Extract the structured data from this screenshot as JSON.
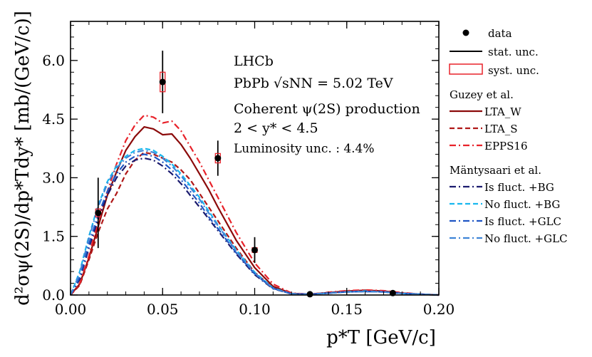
{
  "chart_data": {
    "type": "line",
    "xlabel": "p*T [GeV/c]",
    "ylabel": "d²σψ(2S)/dp*Tdy* [mb/(GeV/c)]",
    "xlim": [
      0.0,
      0.2
    ],
    "ylim": [
      0.0,
      7.0
    ],
    "xticks": [
      0.0,
      0.05,
      0.1,
      0.15,
      0.2
    ],
    "xtick_labels": [
      "0.00",
      "0.05",
      "0.10",
      "0.15",
      "0.20"
    ],
    "yticks": [
      0.0,
      1.5,
      3.0,
      4.5,
      6.0
    ],
    "ytick_labels": [
      "0.0",
      "1.5",
      "3.0",
      "4.5",
      "6.0"
    ],
    "annotations": [
      "LHCb",
      "PbPb √sNN = 5.02 TeV",
      "Coherent ψ(2S) production",
      "2 < y* < 4.5",
      "Luminosity unc. : 4.4%"
    ],
    "data_points": {
      "name": "data",
      "x": [
        0.015,
        0.05,
        0.08,
        0.1,
        0.13,
        0.175
      ],
      "y": [
        2.1,
        5.45,
        3.5,
        1.15,
        0.02,
        0.05
      ],
      "stat_err": [
        0.9,
        0.8,
        0.45,
        0.33,
        0.03,
        0.04
      ],
      "syst_err": [
        0.1,
        0.25,
        0.12,
        0.06,
        0.005,
        0.005
      ]
    },
    "legend": {
      "data_label": "data",
      "stat_label": "stat. unc.",
      "syst_label": "syst. unc.",
      "group1_title": "Guzey et al.",
      "group2_title": "Mäntysaari et al."
    },
    "series": [
      {
        "name": "LTA_W",
        "group": "Guzey et al.",
        "color": "#8b0a0a",
        "style": "solid",
        "x": [
          0,
          0.005,
          0.01,
          0.015,
          0.02,
          0.025,
          0.03,
          0.035,
          0.04,
          0.045,
          0.05,
          0.055,
          0.06,
          0.065,
          0.07,
          0.075,
          0.08,
          0.09,
          0.1,
          0.11,
          0.12,
          0.13,
          0.14,
          0.15,
          0.16,
          0.17,
          0.18,
          0.19,
          0.2
        ],
        "y": [
          0.0,
          0.28,
          0.95,
          1.75,
          2.55,
          3.15,
          3.7,
          4.05,
          4.3,
          4.25,
          4.1,
          4.12,
          3.85,
          3.5,
          3.1,
          2.7,
          2.25,
          1.4,
          0.7,
          0.22,
          0.04,
          0.02,
          0.06,
          0.1,
          0.12,
          0.1,
          0.05,
          0.02,
          0.0
        ]
      },
      {
        "name": "LTA_S",
        "group": "Guzey et al.",
        "color": "#b01818",
        "style": "dashed",
        "x": [
          0,
          0.005,
          0.01,
          0.015,
          0.02,
          0.025,
          0.03,
          0.035,
          0.04,
          0.045,
          0.05,
          0.055,
          0.06,
          0.065,
          0.07,
          0.075,
          0.08,
          0.09,
          0.1,
          0.11,
          0.12,
          0.13,
          0.14,
          0.15,
          0.16,
          0.17,
          0.18,
          0.19,
          0.2
        ],
        "y": [
          0.0,
          0.25,
          0.9,
          1.6,
          2.2,
          2.6,
          3.1,
          3.45,
          3.65,
          3.6,
          3.5,
          3.4,
          3.2,
          2.95,
          2.6,
          2.25,
          1.9,
          1.2,
          0.58,
          0.18,
          0.03,
          0.02,
          0.05,
          0.09,
          0.1,
          0.09,
          0.04,
          0.02,
          0.0
        ]
      },
      {
        "name": "EPPS16",
        "group": "Guzey et al.",
        "color": "#e8222a",
        "style": "dashdot",
        "x": [
          0,
          0.005,
          0.01,
          0.015,
          0.02,
          0.025,
          0.03,
          0.035,
          0.04,
          0.045,
          0.05,
          0.055,
          0.06,
          0.065,
          0.07,
          0.075,
          0.08,
          0.09,
          0.1,
          0.11,
          0.12,
          0.13,
          0.14,
          0.15,
          0.16,
          0.17,
          0.18,
          0.19,
          0.2
        ],
        "y": [
          0.0,
          0.3,
          1.0,
          1.9,
          2.65,
          3.35,
          3.95,
          4.35,
          4.6,
          4.55,
          4.4,
          4.45,
          4.2,
          3.8,
          3.4,
          2.95,
          2.5,
          1.6,
          0.82,
          0.28,
          0.05,
          0.02,
          0.07,
          0.11,
          0.13,
          0.11,
          0.06,
          0.02,
          0.0
        ]
      },
      {
        "name": "Is fluct. +BG",
        "group": "Mäntysaari et al.",
        "color": "#1a1a6e",
        "style": "dashdot",
        "x": [
          0,
          0.005,
          0.01,
          0.015,
          0.02,
          0.025,
          0.03,
          0.035,
          0.04,
          0.045,
          0.05,
          0.055,
          0.06,
          0.065,
          0.07,
          0.075,
          0.08,
          0.09,
          0.1,
          0.11,
          0.12,
          0.13,
          0.14,
          0.15,
          0.16,
          0.17,
          0.18,
          0.19,
          0.2
        ],
        "y": [
          0.0,
          0.4,
          1.2,
          1.95,
          2.55,
          3.0,
          3.3,
          3.45,
          3.5,
          3.45,
          3.3,
          3.1,
          2.85,
          2.55,
          2.25,
          1.95,
          1.65,
          1.05,
          0.52,
          0.16,
          0.03,
          0.02,
          0.05,
          0.08,
          0.09,
          0.08,
          0.04,
          0.02,
          0.0
        ]
      },
      {
        "name": "No fluct. +BG",
        "group": "Mäntysaari et al.",
        "color": "#18b8ee",
        "style": "dashed",
        "x": [
          0,
          0.005,
          0.01,
          0.015,
          0.02,
          0.025,
          0.03,
          0.035,
          0.04,
          0.045,
          0.05,
          0.055,
          0.06,
          0.065,
          0.07,
          0.075,
          0.08,
          0.09,
          0.1,
          0.11,
          0.12,
          0.13,
          0.14,
          0.15,
          0.16,
          0.17,
          0.18,
          0.19,
          0.2
        ],
        "y": [
          0.0,
          0.6,
          1.5,
          2.3,
          2.9,
          3.3,
          3.55,
          3.7,
          3.75,
          3.7,
          3.55,
          3.35,
          3.1,
          2.8,
          2.5,
          2.15,
          1.8,
          1.15,
          0.58,
          0.18,
          0.03,
          0.02,
          0.05,
          0.08,
          0.1,
          0.08,
          0.04,
          0.02,
          0.0
        ]
      },
      {
        "name": "Is fluct. +GLC",
        "group": "Mäntysaari et al.",
        "color": "#1f55c4",
        "style": "dashdot",
        "x": [
          0,
          0.005,
          0.01,
          0.015,
          0.02,
          0.025,
          0.03,
          0.035,
          0.04,
          0.045,
          0.05,
          0.055,
          0.06,
          0.065,
          0.07,
          0.075,
          0.08,
          0.09,
          0.1,
          0.11,
          0.12,
          0.13,
          0.14,
          0.15,
          0.16,
          0.17,
          0.18,
          0.19,
          0.2
        ],
        "y": [
          0.0,
          0.45,
          1.3,
          2.05,
          2.65,
          3.1,
          3.4,
          3.55,
          3.6,
          3.55,
          3.4,
          3.2,
          2.95,
          2.65,
          2.35,
          2.0,
          1.7,
          1.08,
          0.54,
          0.17,
          0.03,
          0.02,
          0.05,
          0.08,
          0.09,
          0.08,
          0.04,
          0.02,
          0.0
        ]
      },
      {
        "name": "No fluct. +GLC",
        "group": "Mäntysaari et al.",
        "color": "#3f84d6",
        "style": "dashdot",
        "x": [
          0,
          0.005,
          0.01,
          0.015,
          0.02,
          0.025,
          0.03,
          0.035,
          0.04,
          0.045,
          0.05,
          0.055,
          0.06,
          0.065,
          0.07,
          0.075,
          0.08,
          0.09,
          0.1,
          0.11,
          0.12,
          0.13,
          0.14,
          0.15,
          0.16,
          0.17,
          0.18,
          0.19,
          0.2
        ],
        "y": [
          0.0,
          0.55,
          1.45,
          2.25,
          2.85,
          3.25,
          3.5,
          3.65,
          3.7,
          3.65,
          3.5,
          3.3,
          3.05,
          2.75,
          2.45,
          2.1,
          1.78,
          1.12,
          0.56,
          0.17,
          0.03,
          0.02,
          0.05,
          0.08,
          0.09,
          0.08,
          0.04,
          0.02,
          0.0
        ]
      }
    ]
  }
}
